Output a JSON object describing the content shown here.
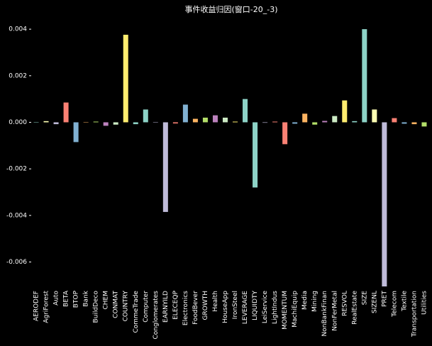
{
  "chart_data": {
    "type": "bar",
    "title": "事件收益归因(窗口-20_-3)",
    "categories": [
      "AERODEF",
      "AgriForest",
      "Auto",
      "BETA",
      "BTOP",
      "Bank",
      "BuildDeco",
      "CHEM",
      "CONMAT",
      "COUNTRY",
      "CommeTrade",
      "Computer",
      "Conglomerates",
      "EARNYILD",
      "ELECEQP",
      "Electronics",
      "FoodBever",
      "GROWTH",
      "Health",
      "HouseApp",
      "IronSteel",
      "LEVERAGE",
      "LIQUIDTY",
      "LeiService",
      "LightIndus",
      "MOMENTUM",
      "MachiEquip",
      "Media",
      "Mining",
      "NonBankFinan",
      "NonFerMetal",
      "RESVOL",
      "RealEstate",
      "SIZE",
      "SIZENL",
      "PRET",
      "Telecom",
      "Textile",
      "Transportation",
      "Utilities"
    ],
    "values": [
      1e-05,
      5e-05,
      -8e-05,
      0.00085,
      -0.00085,
      1e-05,
      3e-05,
      -0.00015,
      -0.0001,
      0.00376,
      -8e-05,
      0.00055,
      1e-05,
      -0.00385,
      -5e-05,
      0.00076,
      0.00015,
      0.0002,
      0.0003,
      0.0002,
      3e-05,
      0.001,
      -0.0028,
      -2e-05,
      3e-05,
      -0.00094,
      -6e-05,
      0.00037,
      -0.0001,
      6e-05,
      0.00027,
      0.00094,
      5e-05,
      0.004,
      0.00055,
      -0.00705,
      0.00018,
      -6e-05,
      -8e-05,
      -0.00018
    ],
    "colors": [
      "#8dd3c7",
      "#feffb3",
      "#bfbbd9",
      "#fa8174",
      "#81b1d2",
      "#fdb462",
      "#b3de69",
      "#bc82bd",
      "#ccebc4",
      "#ffed6f",
      "#8dd3c7",
      "#8dd3c7",
      "#bfbbd9",
      "#bfbbd9",
      "#fa8174",
      "#81b1d2",
      "#fdb462",
      "#b3de69",
      "#bc82bd",
      "#ccebc4",
      "#ffed6f",
      "#8dd3c7",
      "#8dd3c7",
      "#bfbbd9",
      "#fa8174",
      "#fa8174",
      "#81b1d2",
      "#fdb462",
      "#b3de69",
      "#bc82bd",
      "#ccebc4",
      "#ffed6f",
      "#8dd3c7",
      "#8dd3c7",
      "#feffb3",
      "#bfbbd9",
      "#fa8174",
      "#81b1d2",
      "#fdb462",
      "#b3de69"
    ],
    "ylim": [
      -0.00705,
      0.0044
    ],
    "yticks": [
      {
        "value": -0.006,
        "label": "-0.006"
      },
      {
        "value": -0.004,
        "label": "-0.004"
      },
      {
        "value": -0.002,
        "label": "-0.002"
      },
      {
        "value": 0,
        "label": "0.000"
      },
      {
        "value": 0.002,
        "label": "0.002"
      },
      {
        "value": 0.004,
        "label": "0.004"
      }
    ]
  }
}
